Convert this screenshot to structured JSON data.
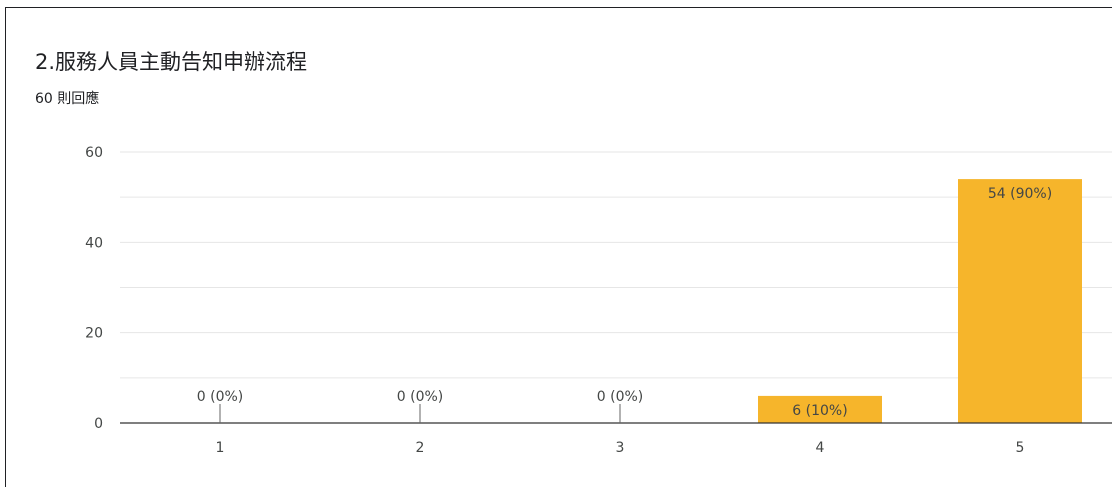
{
  "card": {
    "title": "2.服務人員主動告知申辦流程",
    "subtitle": "60 則回應"
  },
  "colors": {
    "bar": "#F6B52B",
    "grid": "#e6e6e6",
    "axis": "#333333"
  },
  "chart_data": {
    "type": "bar",
    "categories": [
      "1",
      "2",
      "3",
      "4",
      "5"
    ],
    "values": [
      0,
      0,
      0,
      6,
      54
    ],
    "data_labels": [
      "0 (0%)",
      "0 (0%)",
      "0 (0%)",
      "6 (10%)",
      "54 (90%)"
    ],
    "ylim": [
      0,
      60
    ],
    "yticks": [
      0,
      20,
      40,
      60
    ],
    "grid": true,
    "title": "2.服務人員主動告知申辦流程",
    "xlabel": "",
    "ylabel": ""
  }
}
